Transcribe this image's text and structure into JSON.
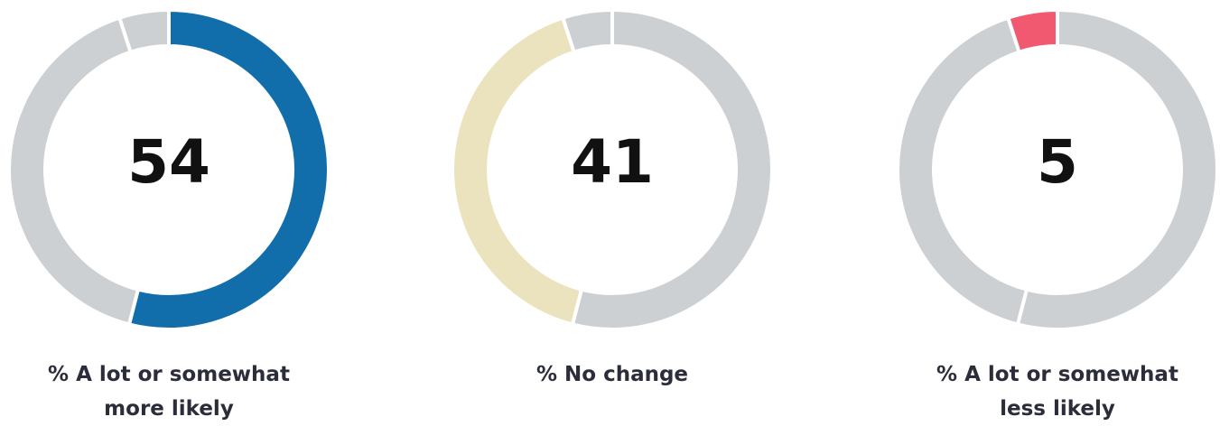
{
  "chart_data": [
    {
      "type": "donut",
      "title": "% A lot or somewhat more likely",
      "values": [
        54,
        41,
        5
      ],
      "colors": [
        "#126dab",
        "#cdd0d3",
        "#cdd0d3"
      ],
      "highlight": 0
    },
    {
      "type": "donut",
      "title": "% No change",
      "values": [
        54,
        41,
        5
      ],
      "colors": [
        "#cdd0d3",
        "#ebe3bd",
        "#cdd0d3"
      ],
      "highlight": 1
    },
    {
      "type": "donut",
      "title": "% A lot or somewhat less likely",
      "values": [
        54,
        41,
        5
      ],
      "colors": [
        "#cdd0d3",
        "#cdd0d3",
        "#f0596f"
      ],
      "highlight": 2
    }
  ]
}
